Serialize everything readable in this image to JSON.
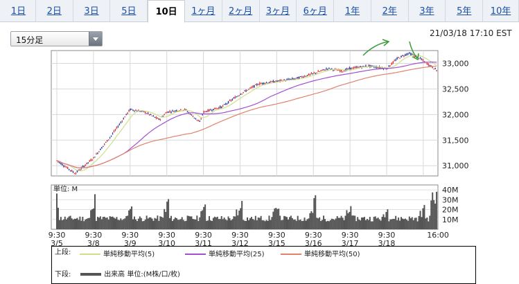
{
  "tabs": [
    {
      "label": "1日"
    },
    {
      "label": "2日"
    },
    {
      "label": "3日"
    },
    {
      "label": "5日"
    },
    {
      "label": "10日",
      "active": true
    },
    {
      "label": "1ヶ月"
    },
    {
      "label": "2ヶ月"
    },
    {
      "label": "3ヶ月"
    },
    {
      "label": "6ヶ月"
    },
    {
      "label": "1年"
    },
    {
      "label": "2年"
    },
    {
      "label": "3年"
    },
    {
      "label": "5年"
    },
    {
      "label": "10年"
    }
  ],
  "interval_select": {
    "value": "15分足"
  },
  "timestamp": "21/03/18 17:10 EST",
  "legend": {
    "upper_label": "上段:",
    "lower_label": "下段:",
    "items": [
      {
        "label": "単純移動平均(5)",
        "color": "#cfe08a"
      },
      {
        "label": "単純移動平均(25)",
        "color": "#a24fcf"
      },
      {
        "label": "単純移動平均(50)",
        "color": "#e0826a"
      }
    ],
    "volume_item": {
      "label": "出来高 単位:(M株/口/枚)",
      "color": "#555555"
    }
  },
  "chart_data": [
    {
      "type": "candlestick",
      "title": "",
      "y_ticks": [
        "33,000",
        "32,500",
        "32,000",
        "31,500",
        "31,000"
      ],
      "ylim": [
        30800,
        33250
      ],
      "x_tick_times": [
        "9:30",
        "9:30",
        "9:30",
        "9:30",
        "9:30",
        "9:30",
        "9:30",
        "9:30",
        "9:30",
        "9:30",
        "16:00"
      ],
      "x_tick_dates": [
        "3/5",
        "3/8",
        "3/9",
        "3/10",
        "3/11",
        "3/12",
        "3/15",
        "3/16",
        "3/17",
        "3/18",
        ""
      ],
      "price_path": [
        [
          0,
          31100
        ],
        [
          0.5,
          30850
        ],
        [
          1,
          31150
        ],
        [
          1.5,
          31600
        ],
        [
          2,
          32100
        ],
        [
          2.4,
          32050
        ],
        [
          2.8,
          31900
        ],
        [
          3,
          32050
        ],
        [
          3.5,
          32100
        ],
        [
          3.9,
          31850
        ],
        [
          4,
          32050
        ],
        [
          4.5,
          32150
        ],
        [
          5,
          32400
        ],
        [
          5.5,
          32600
        ],
        [
          6,
          32650
        ],
        [
          6.5,
          32700
        ],
        [
          7,
          32800
        ],
        [
          7.4,
          32900
        ],
        [
          7.8,
          32850
        ],
        [
          8,
          32900
        ],
        [
          8.5,
          32950
        ],
        [
          9,
          32900
        ],
        [
          9.3,
          33100
        ],
        [
          9.6,
          33200
        ],
        [
          9.9,
          33100
        ],
        [
          10.2,
          32950
        ],
        [
          10.4,
          32850
        ]
      ],
      "sma_note": "moving averages shown"
    },
    {
      "type": "bar",
      "title": "",
      "ylabel": "単位: M",
      "y_ticks": [
        "40M",
        "30M",
        "20M",
        "10M"
      ],
      "ylim": [
        0,
        45
      ],
      "sessions": 10
    }
  ]
}
